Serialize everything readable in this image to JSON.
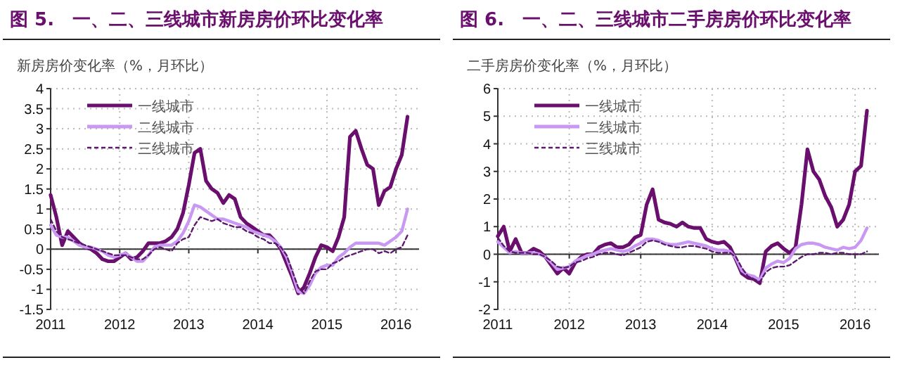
{
  "chart_data": [
    {
      "type": "line",
      "title": "图 5.　一、二、三线城市新房房价环比变化率",
      "x": [
        "2011-01",
        "2011-02",
        "2011-03",
        "2011-04",
        "2011-05",
        "2011-06",
        "2011-07",
        "2011-08",
        "2011-09",
        "2011-10",
        "2011-11",
        "2011-12",
        "2012-01",
        "2012-02",
        "2012-03",
        "2012-04",
        "2012-05",
        "2012-06",
        "2012-07",
        "2012-08",
        "2012-09",
        "2012-10",
        "2012-11",
        "2012-12",
        "2013-01",
        "2013-02",
        "2013-03",
        "2013-04",
        "2013-05",
        "2013-06",
        "2013-07",
        "2013-08",
        "2013-09",
        "2013-10",
        "2013-11",
        "2013-12",
        "2014-01",
        "2014-02",
        "2014-03",
        "2014-04",
        "2014-05",
        "2014-06",
        "2014-07",
        "2014-08",
        "2014-09",
        "2014-10",
        "2014-11",
        "2014-12",
        "2015-01",
        "2015-02",
        "2015-03",
        "2015-04",
        "2015-05",
        "2015-06",
        "2015-07",
        "2015-08",
        "2015-09",
        "2015-10",
        "2015-11",
        "2015-12",
        "2016-01",
        "2016-02",
        "2016-03"
      ],
      "ylabel": "新房房价变化率（%，月环比）",
      "xlim": [
        "2011",
        "2016-05"
      ],
      "xticks": [
        "2011",
        "2012",
        "2013",
        "2014",
        "2015",
        "2016"
      ],
      "ylim": [
        -1.5,
        4
      ],
      "yticks": [
        -1.5,
        -1,
        -0.5,
        0,
        0.5,
        1,
        1.5,
        2,
        2.5,
        3,
        3.5,
        4
      ],
      "grid": true,
      "legend": "top left",
      "series": [
        {
          "name": "一线城市",
          "color": "#6a0f6e",
          "line_style": "solid",
          "values": [
            1.35,
            0.8,
            0.1,
            0.45,
            0.3,
            0.15,
            0.05,
            0,
            -0.1,
            -0.25,
            -0.3,
            -0.3,
            -0.2,
            -0.1,
            -0.25,
            -0.2,
            -0.05,
            0.15,
            0.15,
            0.15,
            0.2,
            0.3,
            0.5,
            0.9,
            1.6,
            2.4,
            2.5,
            1.7,
            1.5,
            1.4,
            1.15,
            1.35,
            1.25,
            0.8,
            0.65,
            0.55,
            0.45,
            0.35,
            0.35,
            0.2,
            0,
            -0.35,
            -0.7,
            -1.1,
            -0.95,
            -0.6,
            -0.2,
            0.1,
            0.05,
            -0.05,
            0.3,
            0.8,
            2.8,
            2.95,
            2.5,
            2.1,
            2.0,
            1.1,
            1.45,
            1.55,
            2.0,
            2.35,
            3.3
          ]
        },
        {
          "name": "二线城市",
          "color": "#c898f2",
          "line_style": "solid",
          "values": [
            0.6,
            0.35,
            0.3,
            0.3,
            0.2,
            0.1,
            0.05,
            0.05,
            0,
            -0.05,
            -0.15,
            -0.2,
            -0.15,
            -0.1,
            -0.2,
            -0.3,
            -0.3,
            -0.15,
            0.05,
            0.1,
            0.1,
            0.1,
            0.2,
            0.4,
            0.7,
            1.1,
            1.05,
            0.95,
            0.85,
            0.75,
            0.75,
            0.7,
            0.65,
            0.6,
            0.55,
            0.45,
            0.4,
            0.35,
            0.3,
            0.2,
            0.05,
            -0.2,
            -0.6,
            -1.05,
            -1.1,
            -0.9,
            -0.6,
            -0.45,
            -0.4,
            -0.4,
            -0.2,
            -0.1,
            0.05,
            0.15,
            0.15,
            0.15,
            0.15,
            0.15,
            0.1,
            0.2,
            0.3,
            0.45,
            1.0
          ]
        },
        {
          "name": "三线城市",
          "color": "#5c1a6c",
          "line_style": "dashed",
          "values": [
            0.75,
            0.45,
            0.3,
            0.25,
            0.2,
            0.15,
            0.1,
            0.05,
            0,
            -0.05,
            -0.1,
            -0.15,
            -0.15,
            -0.15,
            -0.2,
            -0.25,
            -0.25,
            -0.15,
            0,
            0.05,
            0,
            -0.05,
            0.15,
            0.25,
            0.3,
            0.6,
            0.8,
            0.75,
            0.7,
            0.75,
            0.65,
            0.6,
            0.55,
            0.55,
            0.45,
            0.4,
            0.3,
            0.25,
            0.15,
            0.15,
            0.05,
            -0.15,
            -0.55,
            -0.95,
            -1.1,
            -0.8,
            -0.55,
            -0.5,
            -0.5,
            -0.35,
            -0.3,
            -0.2,
            -0.15,
            -0.1,
            -0.05,
            0,
            0,
            -0.1,
            -0.05,
            -0.1,
            0,
            0.05,
            0.35
          ]
        }
      ]
    },
    {
      "type": "line",
      "title": "图 6.　一、二、三线城市二手房房价环比变化率",
      "x": [
        "2011-01",
        "2011-02",
        "2011-03",
        "2011-04",
        "2011-05",
        "2011-06",
        "2011-07",
        "2011-08",
        "2011-09",
        "2011-10",
        "2011-11",
        "2011-12",
        "2012-01",
        "2012-02",
        "2012-03",
        "2012-04",
        "2012-05",
        "2012-06",
        "2012-07",
        "2012-08",
        "2012-09",
        "2012-10",
        "2012-11",
        "2012-12",
        "2013-01",
        "2013-02",
        "2013-03",
        "2013-04",
        "2013-05",
        "2013-06",
        "2013-07",
        "2013-08",
        "2013-09",
        "2013-10",
        "2013-11",
        "2013-12",
        "2014-01",
        "2014-02",
        "2014-03",
        "2014-04",
        "2014-05",
        "2014-06",
        "2014-07",
        "2014-08",
        "2014-09",
        "2014-10",
        "2014-11",
        "2014-12",
        "2015-01",
        "2015-02",
        "2015-03",
        "2015-04",
        "2015-05",
        "2015-06",
        "2015-07",
        "2015-08",
        "2015-09",
        "2015-10",
        "2015-11",
        "2015-12",
        "2016-01",
        "2016-02",
        "2016-03"
      ],
      "ylabel": "二手房房价变化率（%，月环比）",
      "xlim": [
        "2011",
        "2016-05"
      ],
      "xticks": [
        "2011",
        "2012",
        "2013",
        "2014",
        "2015",
        "2016"
      ],
      "ylim": [
        -2,
        6
      ],
      "yticks": [
        -2,
        -1,
        0,
        1,
        2,
        3,
        4,
        5,
        6
      ],
      "grid": true,
      "legend": "top left",
      "series": [
        {
          "name": "一线城市",
          "color": "#6a0f6e",
          "line_style": "solid",
          "values": [
            0.65,
            1.0,
            0.1,
            0.55,
            0.05,
            0.05,
            0.2,
            0.1,
            -0.1,
            -0.4,
            -0.7,
            -0.5,
            -0.7,
            -0.3,
            -0.1,
            0,
            0,
            0.25,
            0.35,
            0.4,
            0.25,
            0.25,
            0.35,
            0.6,
            0.7,
            1.8,
            2.35,
            1.25,
            1.15,
            1.1,
            1.0,
            1.15,
            1.0,
            0.95,
            0.95,
            0.55,
            0.45,
            0.4,
            0.45,
            0.25,
            -0.2,
            -0.7,
            -0.85,
            -0.9,
            -1.05,
            0.1,
            0.3,
            0.4,
            0.2,
            0.05,
            0.25,
            1.8,
            3.8,
            3.0,
            2.7,
            2.1,
            1.7,
            1.0,
            1.25,
            1.8,
            3.0,
            3.2,
            5.2
          ]
        },
        {
          "name": "二线城市",
          "color": "#c898f2",
          "line_style": "solid",
          "values": [
            0.45,
            0.25,
            0.05,
            0.1,
            0.05,
            0.05,
            0.05,
            0,
            -0.1,
            -0.3,
            -0.55,
            -0.5,
            -0.45,
            -0.25,
            -0.15,
            -0.05,
            0,
            0.1,
            0.15,
            0.2,
            0.15,
            0.1,
            0.15,
            0.3,
            0.4,
            0.55,
            0.55,
            0.5,
            0.4,
            0.35,
            0.35,
            0.4,
            0.45,
            0.4,
            0.35,
            0.3,
            0.2,
            0.15,
            0.15,
            0.1,
            -0.15,
            -0.6,
            -0.75,
            -0.8,
            -0.95,
            -0.5,
            -0.35,
            -0.25,
            -0.3,
            -0.15,
            0.2,
            0.35,
            0.4,
            0.4,
            0.35,
            0.25,
            0.2,
            0.15,
            0.25,
            0.2,
            0.25,
            0.5,
            0.95
          ]
        },
        {
          "name": "三线城市",
          "color": "#5c1a6c",
          "line_style": "dashed",
          "values": [
            0.6,
            0.3,
            0.1,
            0.05,
            0.05,
            0.05,
            0,
            0,
            -0.1,
            -0.25,
            -0.45,
            -0.5,
            -0.45,
            -0.3,
            -0.25,
            -0.15,
            -0.1,
            0,
            0.05,
            0.05,
            0,
            -0.05,
            0.05,
            0.15,
            0.25,
            0.45,
            0.5,
            0.45,
            0.35,
            0.3,
            0.25,
            0.25,
            0.3,
            0.3,
            0.25,
            0.2,
            0.1,
            0.05,
            0.05,
            0.05,
            -0.1,
            -0.5,
            -0.8,
            -0.9,
            -1.0,
            -0.65,
            -0.5,
            -0.45,
            -0.45,
            -0.4,
            -0.25,
            -0.1,
            0,
            0,
            0.05,
            0.05,
            0,
            0.05,
            0.05,
            0,
            0,
            0,
            0.1
          ]
        }
      ]
    }
  ]
}
